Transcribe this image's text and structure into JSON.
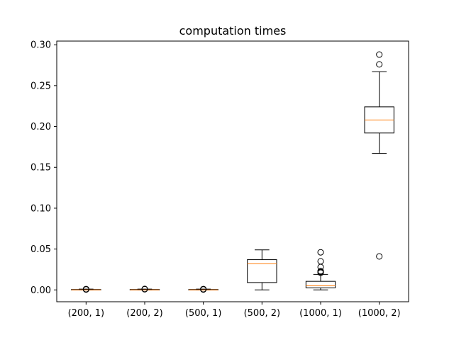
{
  "chart_data": {
    "type": "box",
    "title": "computation times",
    "xlabel": "",
    "ylabel": "",
    "ylim": [
      -0.0145,
      0.3045
    ],
    "yticks": [
      "0.00",
      "0.05",
      "0.10",
      "0.15",
      "0.20",
      "0.25",
      "0.30"
    ],
    "yticks_values": [
      0.0,
      0.05,
      0.1,
      0.15,
      0.2,
      0.25,
      0.3
    ],
    "categories": [
      "(200, 1)",
      "(200, 2)",
      "(500, 1)",
      "(500, 2)",
      "(1000, 1)",
      "(1000, 2)"
    ],
    "boxes": [
      {
        "whisker_low": 0.0,
        "q1": 0.0,
        "median": 0.0,
        "q3": 0.0005,
        "whisker_high": 0.001,
        "outliers": [
          0.0005,
          0.0008,
          0.001
        ]
      },
      {
        "whisker_low": 0.0,
        "q1": 0.0,
        "median": 0.0,
        "q3": 0.0005,
        "whisker_high": 0.001,
        "outliers": [
          0.0008,
          0.0012
        ]
      },
      {
        "whisker_low": 0.0,
        "q1": 0.0,
        "median": 0.0,
        "q3": 0.0005,
        "whisker_high": 0.001,
        "outliers": [
          0.0005,
          0.0008,
          0.001
        ]
      },
      {
        "whisker_low": 0.0,
        "q1": 0.009,
        "median": 0.032,
        "q3": 0.037,
        "whisker_high": 0.049,
        "outliers": []
      },
      {
        "whisker_low": 0.0,
        "q1": 0.0025,
        "median": 0.005,
        "q3": 0.0105,
        "whisker_high": 0.019,
        "outliers": [
          0.021,
          0.022,
          0.023,
          0.028,
          0.035,
          0.046
        ]
      },
      {
        "whisker_low": 0.167,
        "q1": 0.192,
        "median": 0.208,
        "q3": 0.224,
        "whisker_high": 0.267,
        "outliers": [
          0.041,
          0.276,
          0.288
        ]
      }
    ],
    "colors": {
      "box": "#000000",
      "median": "#ff7f0e",
      "axes": "#000000"
    },
    "grid": false,
    "legend": "none"
  }
}
